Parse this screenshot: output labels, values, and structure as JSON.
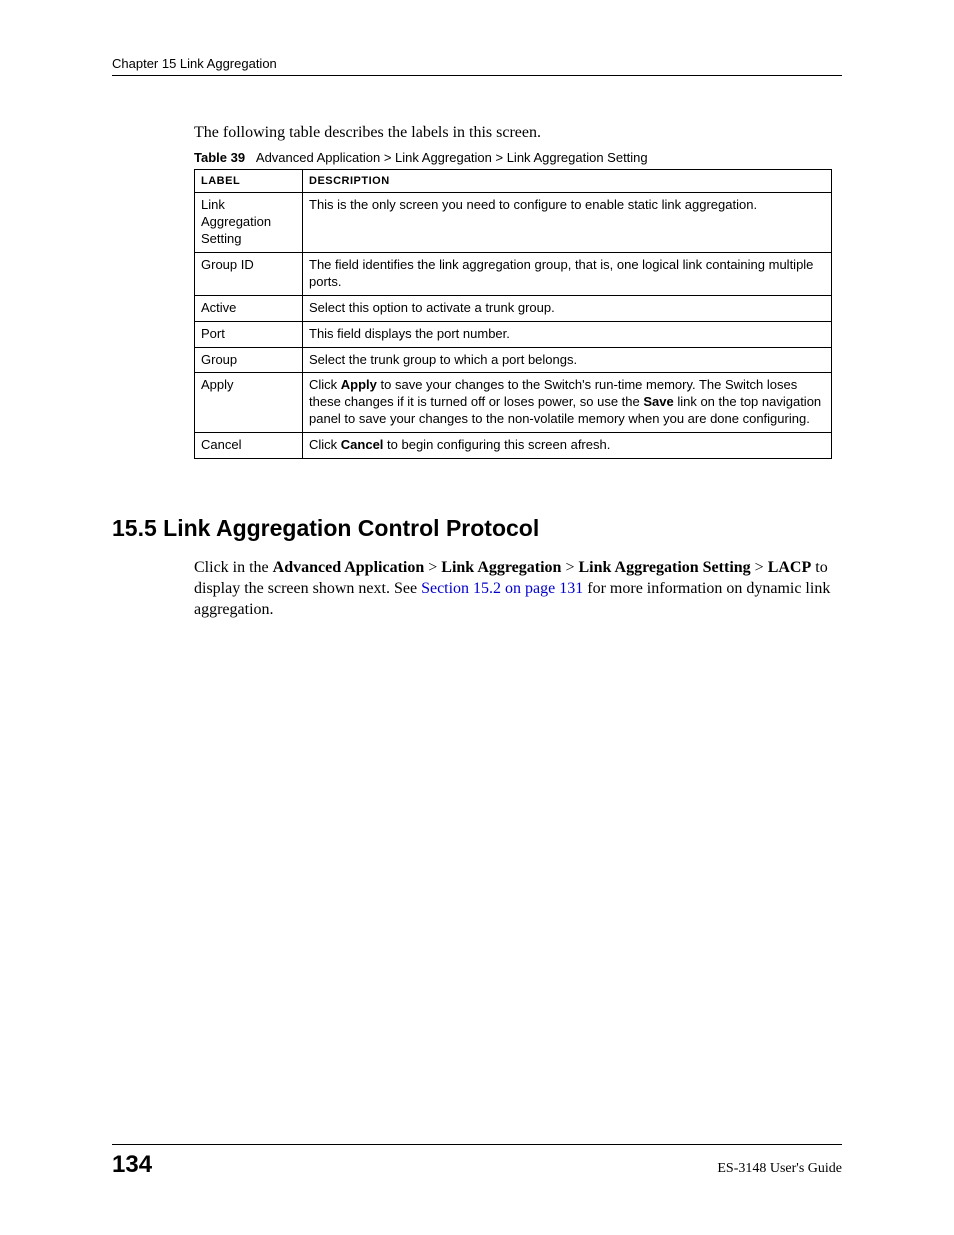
{
  "header": {
    "chapter_title": "Chapter 15 Link Aggregation"
  },
  "intro_text": "The following table describes the labels in this screen.",
  "table_caption": {
    "number": "Table 39",
    "title": "Advanced Application > Link Aggregation > Link Aggregation Setting"
  },
  "table": {
    "columns": [
      "LABEL",
      "DESCRIPTION"
    ],
    "rows": [
      {
        "label": "Link Aggregation Setting",
        "desc_pre": "This is the only screen you need to configure to enable static link aggregation."
      },
      {
        "label": "Group ID",
        "desc_pre": "The field identifies the link aggregation group, that is, one logical link containing multiple ports."
      },
      {
        "label": "Active",
        "desc_pre": "Select this option to activate a trunk group."
      },
      {
        "label": "Port",
        "desc_pre": "This field displays the port number."
      },
      {
        "label": "Group",
        "desc_pre": "Select the trunk group to which a port belongs."
      },
      {
        "label": "Apply",
        "desc_pre": "Click ",
        "desc_bold1": "Apply",
        "desc_mid": " to save your changes to the Switch's run-time memory. The Switch loses these changes if it is turned off or loses power, so use the ",
        "desc_bold2": "Save",
        "desc_post": " link on the top navigation panel to save your changes to the non-volatile memory when you are done configuring."
      },
      {
        "label": "Cancel",
        "desc_pre": "Click ",
        "desc_bold1": "Cancel",
        "desc_post": " to begin configuring this screen afresh."
      }
    ]
  },
  "section": {
    "heading": "15.5  Link Aggregation Control Protocol",
    "para": {
      "t1": "Click in the ",
      "b1": "Advanced Application",
      "t2": " > ",
      "b2": "Link Aggregation",
      "t3": " > ",
      "b3": "Link Aggregation Setting",
      "t4": " > ",
      "b4": "LACP",
      "t5": " to display the screen shown next. See ",
      "link": "Section 15.2 on page 131",
      "t6": " for more information on dynamic link aggregation."
    }
  },
  "footer": {
    "page_number": "134",
    "guide": "ES-3148 User's Guide"
  }
}
